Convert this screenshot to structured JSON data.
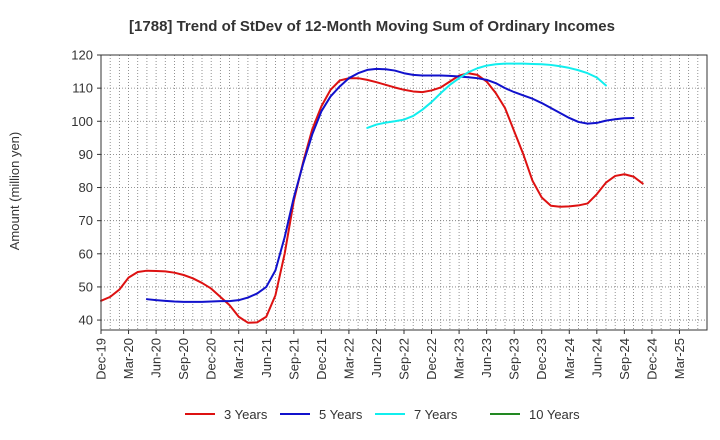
{
  "chart_data": {
    "type": "line",
    "title": "[1788]  Trend of StDev of 12-Month Moving Sum of Ordinary Incomes",
    "xlabel": "",
    "ylabel": "Amount (million yen)",
    "ylim": [
      37,
      120
    ],
    "yticks": [
      40,
      50,
      60,
      70,
      80,
      90,
      100,
      110,
      120
    ],
    "x_range_months": [
      0,
      66
    ],
    "x_ticks": [
      {
        "label": "Dec-19",
        "m": 0
      },
      {
        "label": "Mar-20",
        "m": 3
      },
      {
        "label": "Jun-20",
        "m": 6
      },
      {
        "label": "Sep-20",
        "m": 9
      },
      {
        "label": "Dec-20",
        "m": 12
      },
      {
        "label": "Mar-21",
        "m": 15
      },
      {
        "label": "Jun-21",
        "m": 18
      },
      {
        "label": "Sep-21",
        "m": 21
      },
      {
        "label": "Dec-21",
        "m": 24
      },
      {
        "label": "Mar-22",
        "m": 27
      },
      {
        "label": "Jun-22",
        "m": 30
      },
      {
        "label": "Sep-22",
        "m": 33
      },
      {
        "label": "Dec-22",
        "m": 36
      },
      {
        "label": "Mar-23",
        "m": 39
      },
      {
        "label": "Jun-23",
        "m": 42
      },
      {
        "label": "Sep-23",
        "m": 45
      },
      {
        "label": "Dec-23",
        "m": 48
      },
      {
        "label": "Mar-24",
        "m": 51
      },
      {
        "label": "Jun-24",
        "m": 54
      },
      {
        "label": "Sep-24",
        "m": 57
      },
      {
        "label": "Dec-24",
        "m": 60
      },
      {
        "label": "Mar-25",
        "m": 63
      }
    ],
    "grid": true,
    "legend_position": "bottom",
    "series": [
      {
        "name": "3 Years",
        "color": "#dd1111",
        "start_month": 0,
        "values": [
          45.8,
          47.0,
          49.2,
          52.8,
          54.5,
          54.9,
          54.8,
          54.7,
          54.3,
          53.6,
          52.6,
          51.2,
          49.5,
          47.0,
          44.5,
          41.0,
          39.2,
          39.3,
          41.0,
          47.5,
          60.0,
          76.0,
          87.5,
          97.5,
          104.5,
          109.5,
          112.3,
          113.0,
          113.0,
          112.5,
          111.8,
          111.0,
          110.2,
          109.5,
          109.0,
          108.8,
          109.3,
          110.2,
          112.0,
          113.8,
          114.5,
          114.0,
          112.0,
          108.5,
          104.0,
          97.0,
          90.0,
          82.0,
          77.0,
          74.5,
          74.2,
          74.3,
          74.6,
          75.2,
          78.0,
          81.5,
          83.5,
          84.0,
          83.3,
          81.2
        ]
      },
      {
        "name": "5 Years",
        "color": "#1111cc",
        "start_month": 5,
        "values": [
          46.3,
          46.0,
          45.8,
          45.6,
          45.5,
          45.5,
          45.5,
          45.6,
          45.7,
          45.7,
          46.0,
          46.8,
          48.0,
          50.0,
          55.0,
          65.0,
          77.0,
          87.0,
          96.0,
          103.0,
          107.5,
          110.5,
          113.0,
          114.5,
          115.5,
          115.8,
          115.7,
          115.3,
          114.5,
          114.0,
          113.8,
          113.8,
          113.8,
          113.7,
          113.5,
          113.3,
          113.0,
          112.5,
          111.5,
          110.0,
          108.8,
          107.8,
          106.8,
          105.5,
          104.0,
          102.5,
          101.0,
          99.8,
          99.3,
          99.5,
          100.2,
          100.6,
          100.9,
          101.0
        ]
      },
      {
        "name": "7 Years",
        "color": "#11eeee",
        "start_month": 29,
        "values": [
          98.0,
          99.0,
          99.6,
          100.0,
          100.5,
          101.6,
          103.5,
          105.8,
          108.5,
          111.0,
          113.0,
          114.8,
          116.0,
          116.8,
          117.2,
          117.4,
          117.4,
          117.4,
          117.3,
          117.2,
          117.0,
          116.6,
          116.1,
          115.4,
          114.5,
          113.2,
          110.8
        ]
      },
      {
        "name": "10 Years",
        "color": "#228822",
        "start_month": 0,
        "values": []
      }
    ]
  }
}
